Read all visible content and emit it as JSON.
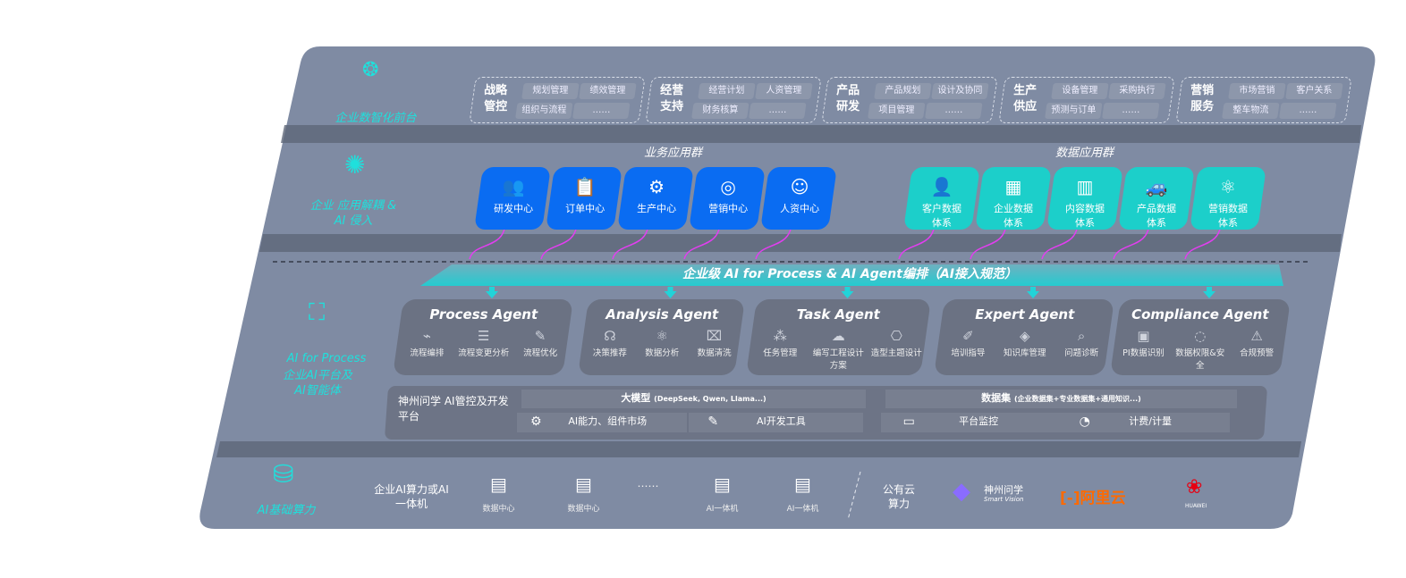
{
  "colors": {
    "panel": "#7f8ba3",
    "shadow": "#5e6678",
    "accent_cyan": "#1fe0dc",
    "business_card": "#0a6cf2",
    "data_card": "#1ccfca",
    "arrow": "#e23ef0"
  },
  "layers": {
    "frontend": {
      "label": "企业数智化前台",
      "icon": "brain-icon"
    },
    "apps": {
      "label": "企业 应用解耦 & AI 侵入",
      "icon": "molecule-icon"
    },
    "ai": {
      "label_en": "AI for Process",
      "label_cn": "企业AI平台及AI智能体",
      "icon": "face-scan-icon"
    },
    "compute": {
      "label": "AI基础算力",
      "icon": "database-icon"
    }
  },
  "front_groups": [
    {
      "title": "战略管控",
      "chips": [
        "规划管理",
        "绩效管理",
        "组织与流程",
        "……"
      ]
    },
    {
      "title": "经营支持",
      "chips": [
        "经营计划",
        "人资管理",
        "财务核算",
        "……"
      ]
    },
    {
      "title": "产品研发",
      "chips": [
        "产品规划",
        "设计及协同",
        "项目管理",
        "……"
      ]
    },
    {
      "title": "生产供应",
      "chips": [
        "设备管理",
        "采购执行",
        "预测与订单",
        "……"
      ]
    },
    {
      "title": "营销服务",
      "chips": [
        "市场营销",
        "客户关系",
        "整车物流",
        "……"
      ]
    }
  ],
  "business_apps": {
    "title": "业务应用群",
    "items": [
      {
        "label": "研发中心",
        "icon": "team-icon"
      },
      {
        "label": "订单中心",
        "icon": "clipboard-icon"
      },
      {
        "label": "生产中心",
        "icon": "factory-icon"
      },
      {
        "label": "营销中心",
        "icon": "target-icon"
      },
      {
        "label": "人资中心",
        "icon": "people-icon"
      }
    ]
  },
  "data_apps": {
    "title": "数据应用群",
    "items": [
      {
        "label": "客户数据体系",
        "icon": "user-icon"
      },
      {
        "label": "企业数据体系",
        "icon": "building-icon"
      },
      {
        "label": "内容数据体系",
        "icon": "books-icon"
      },
      {
        "label": "产品数据体系",
        "icon": "car-icon"
      },
      {
        "label": "营销数据体系",
        "icon": "atom-icon"
      }
    ]
  },
  "orchestration_banner": "企业级 AI for Process & AI Agent编排（AI接入规范）",
  "agents": [
    {
      "title": "Process Agent",
      "items": [
        {
          "label": "流程编排",
          "icon": "chart-icon"
        },
        {
          "label": "流程变更分析",
          "icon": "list-icon"
        },
        {
          "label": "流程优化",
          "icon": "optimize-icon"
        }
      ]
    },
    {
      "title": "Analysis Agent",
      "items": [
        {
          "label": "决策推荐",
          "icon": "head-icon"
        },
        {
          "label": "数据分析",
          "icon": "atom-icon"
        },
        {
          "label": "数据清洗",
          "icon": "clean-icon"
        }
      ]
    },
    {
      "title": "Task Agent",
      "items": [
        {
          "label": "任务管理",
          "icon": "network-icon"
        },
        {
          "label": "编写工程设计方案",
          "icon": "cloud-icon"
        },
        {
          "label": "造型主题设计",
          "icon": "design-icon"
        }
      ]
    },
    {
      "title": "Expert Agent",
      "items": [
        {
          "label": "培训指导",
          "icon": "training-icon"
        },
        {
          "label": "知识库管理",
          "icon": "layers-icon"
        },
        {
          "label": "问题诊断",
          "icon": "diagnose-icon"
        }
      ]
    },
    {
      "title": "Compliance Agent",
      "items": [
        {
          "label": "PI数据识别",
          "icon": "id-card-icon"
        },
        {
          "label": "数据权限&安全",
          "icon": "shield-icon"
        },
        {
          "label": "合规预警",
          "icon": "alert-icon"
        }
      ]
    }
  ],
  "platform": {
    "name": "神州问学 AI管控及开发平台",
    "llm_title": "大模型",
    "llm_note": "(DeepSeek, Qwen, Llama...)",
    "dataset_title": "数据集",
    "dataset_note": "(企业数据集+专业数据集+通用知识...)",
    "cells": [
      {
        "label": "AI能力、组件市场",
        "icon": "market-icon"
      },
      {
        "label": "AI开发工具",
        "icon": "devtool-icon"
      },
      {
        "label": "平台监控",
        "icon": "monitor-icon"
      },
      {
        "label": "计费/计量",
        "icon": "gauge-icon"
      }
    ]
  },
  "compute": {
    "private_label": "企业AI算力或AI一体机",
    "servers": [
      {
        "label": "数据中心"
      },
      {
        "label": "数据中心"
      },
      {
        "label": "……"
      },
      {
        "label": "AI一体机"
      },
      {
        "label": "AI一体机"
      }
    ],
    "public_label": "公有云算力",
    "vendors": [
      {
        "name": "神州问学",
        "sub": "Smart Vision",
        "color": "#ffffff"
      },
      {
        "name": "阿里云",
        "color": "#ff6a00"
      },
      {
        "name": "HUAWEI",
        "color": "#e60012"
      }
    ]
  }
}
